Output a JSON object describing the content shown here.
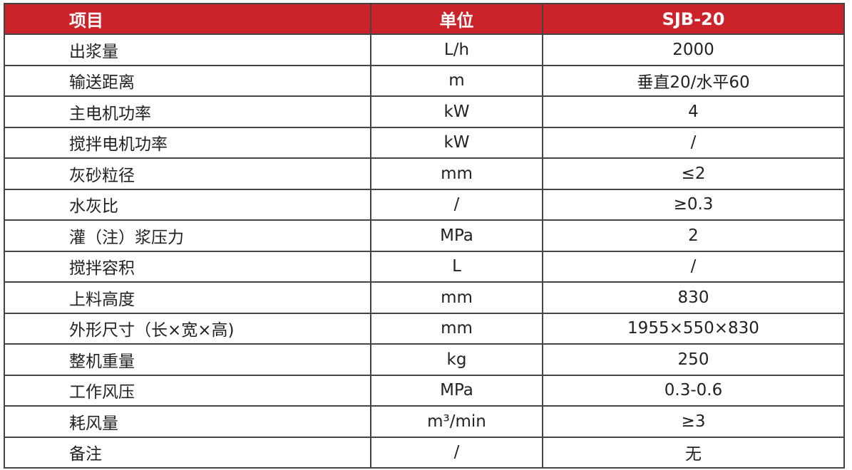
{
  "header": {
    "item": "项目",
    "unit": "单位",
    "model": "SJB-20"
  },
  "colors": {
    "header_bg": "#cc2229",
    "header_text": "#ffffff"
  },
  "rows": [
    {
      "item": "出浆量",
      "unit": "L/h",
      "value": "2000"
    },
    {
      "item": "输送距离",
      "unit": "m",
      "value": "垂直20/水平60"
    },
    {
      "item": "主电机功率",
      "unit": "kW",
      "value": "4"
    },
    {
      "item": "搅拌电机功率",
      "unit": "kW",
      "value": "/"
    },
    {
      "item": "灰砂粒径",
      "unit": "mm",
      "value": "≤2"
    },
    {
      "item": "水灰比",
      "unit": "/",
      "value": "≥0.3"
    },
    {
      "item": "灌（注）浆压力",
      "unit": "MPa",
      "value": "2"
    },
    {
      "item": "搅拌容积",
      "unit": "L",
      "value": "/"
    },
    {
      "item": "上料高度",
      "unit": "mm",
      "value": "830"
    },
    {
      "item": "外形尺寸（长×宽×高)",
      "unit": "mm",
      "value": "1955×550×830"
    },
    {
      "item": "整机重量",
      "unit": "kg",
      "value": "250"
    },
    {
      "item": "工作风压",
      "unit": "MPa",
      "value": "0.3-0.6"
    },
    {
      "item": "耗风量",
      "unit": "m³/min",
      "value": "≥3"
    },
    {
      "item": "备注",
      "unit": "/",
      "value": "无"
    }
  ]
}
